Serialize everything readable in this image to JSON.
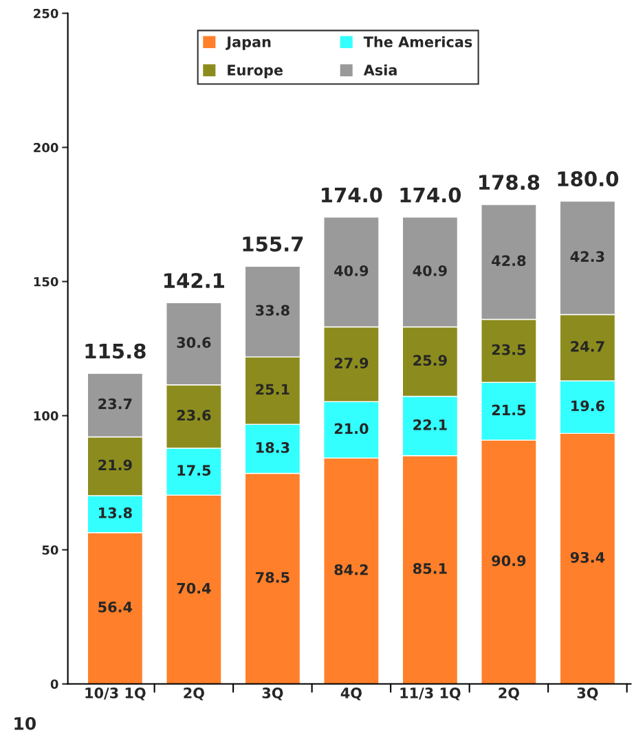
{
  "chart_data": {
    "type": "bar",
    "stacked": true,
    "categories": [
      "10/3 1Q",
      "2Q",
      "3Q",
      "4Q",
      "11/3 1Q",
      "2Q",
      "3Q"
    ],
    "series": [
      {
        "name": "Japan",
        "color": "#ff7f2a",
        "values": [
          56.4,
          70.4,
          78.5,
          84.2,
          85.1,
          90.9,
          93.4
        ],
        "value_labels": [
          "56.4",
          "70.4",
          "78.5",
          "84.2",
          "85.1",
          "90.9",
          "93.4"
        ]
      },
      {
        "name": "The Americas",
        "color": "#33ffff",
        "values": [
          13.8,
          17.5,
          18.3,
          21.0,
          22.1,
          21.5,
          19.6
        ],
        "value_labels": [
          "13.8",
          "17.5",
          "18.3",
          "21.0",
          "22.1",
          "21.5",
          "19.6"
        ]
      },
      {
        "name": "Europe",
        "color": "#8c8c1e",
        "values": [
          21.9,
          23.6,
          25.1,
          27.9,
          25.9,
          23.5,
          24.7
        ],
        "value_labels": [
          "21.9",
          "23.6",
          "25.1",
          "27.9",
          "25.9",
          "23.5",
          "24.7"
        ]
      },
      {
        "name": "Asia",
        "color": "#9a9a9a",
        "values": [
          23.7,
          30.6,
          33.8,
          40.9,
          40.9,
          42.8,
          42.3
        ],
        "value_labels": [
          "23.7",
          "30.6",
          "33.8",
          "40.9",
          "40.9",
          "42.8",
          "42.3"
        ]
      }
    ],
    "totals": [
      "115.8",
      "142.1",
      "155.7",
      "174.0",
      "174.0",
      "178.8",
      "180.0"
    ],
    "ylim": [
      0,
      250
    ],
    "yticks": [
      0,
      50,
      100,
      150,
      200,
      250
    ],
    "grid": false,
    "legend": "top",
    "annotations": [
      "10"
    ]
  }
}
